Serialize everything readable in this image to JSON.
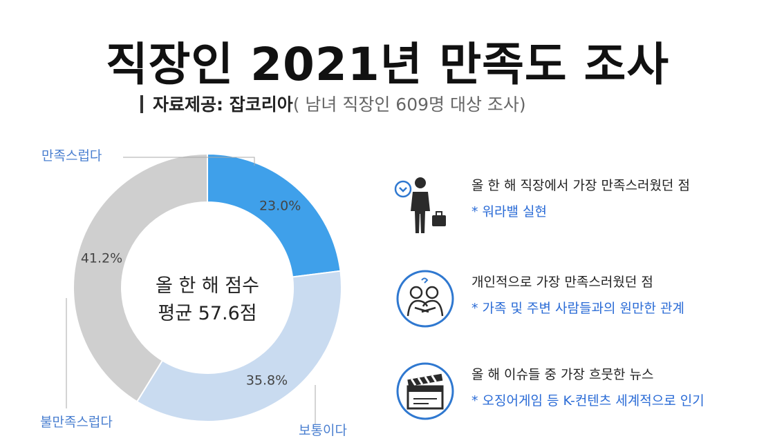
{
  "header": {
    "title": "직장인 2021년 만족도 조사",
    "source_label": "자료제공: 잡코리아",
    "source_note": "( 남녀 직장인 609명 대상 조사)"
  },
  "chart_data": {
    "type": "pie",
    "donut": true,
    "slices": [
      {
        "label": "만족스럽다",
        "value": 23.0,
        "value_label": "23.0%",
        "color": "#3fa0ea"
      },
      {
        "label": "보통이다",
        "value": 35.8,
        "value_label": "35.8%",
        "color": "#c9dbf0"
      },
      {
        "label": "불만족스럽다",
        "value": 41.2,
        "value_label": "41.2%",
        "color": "#cfcfcf"
      }
    ],
    "center_line1": "올 한 해 점수",
    "center_line2": "평균 57.6점"
  },
  "info_items": [
    {
      "icon": "businessman-icon",
      "head": "올 한 해 직장에서 가장 만족스러웠던 점",
      "detail": "* 워라밸 실현"
    },
    {
      "icon": "hugging-people-icon",
      "head": "개인적으로 가장 만족스러웠던 점",
      "detail": "* 가족 및 주변 사람들과의 원만한 관계"
    },
    {
      "icon": "clapperboard-icon",
      "head": "올 해 이슈들 중 가장 흐뭇한 뉴스",
      "detail": "* 오징어게임 등 K-컨텐츠 세계적으로 인기"
    }
  ],
  "colors": {
    "accent": "#2a6bd6",
    "icon_blue": "#2f78d0",
    "dark": "#2b2b2b"
  }
}
